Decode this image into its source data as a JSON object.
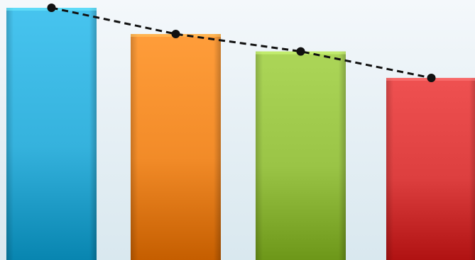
{
  "chart_data": {
    "type": "bar",
    "categories": [
      "",
      "",
      "",
      ""
    ],
    "values": [
      100,
      89.6,
      82.7,
      72.2
    ],
    "ylim": [
      0,
      100
    ],
    "title": "",
    "xlabel": "",
    "ylabel": "",
    "grid": false,
    "legend": "none",
    "colors": [
      "#35b2dd",
      "#f28b28",
      "#9ac446",
      "#dd3f3f"
    ],
    "trendline": {
      "values": [
        100,
        89.6,
        82.7,
        72.2
      ],
      "style": "dashed",
      "color": "#111111",
      "markers": "circle"
    }
  }
}
